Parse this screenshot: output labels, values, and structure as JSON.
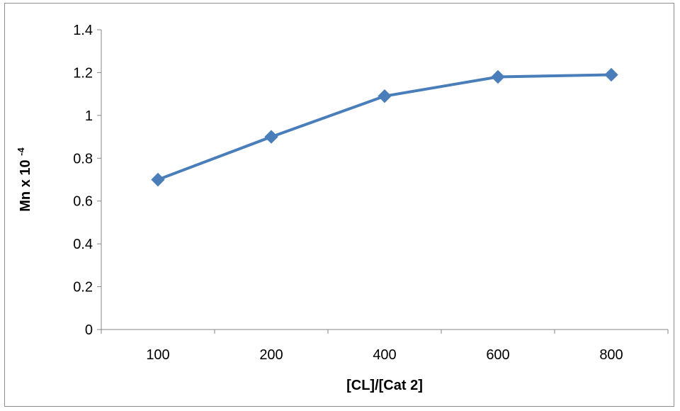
{
  "chart_data": {
    "type": "line",
    "categories": [
      "100",
      "200",
      "400",
      "600",
      "800"
    ],
    "series": [
      {
        "values": [
          0.7,
          0.9,
          1.09,
          1.18,
          1.19
        ],
        "color": "#4a7ebb",
        "marker": "diamond"
      }
    ],
    "xlabel": "[CL]/[Cat 2]",
    "ylabel_main": "Mn x 10",
    "ylabel_sup": "-4",
    "ylim": [
      0,
      1.4
    ],
    "ytick_step": 0.2,
    "yticks": [
      "0",
      "0.2",
      "0.4",
      "0.6",
      "0.8",
      "1",
      "1.2",
      "1.4"
    ],
    "grid": false,
    "legend": false
  }
}
